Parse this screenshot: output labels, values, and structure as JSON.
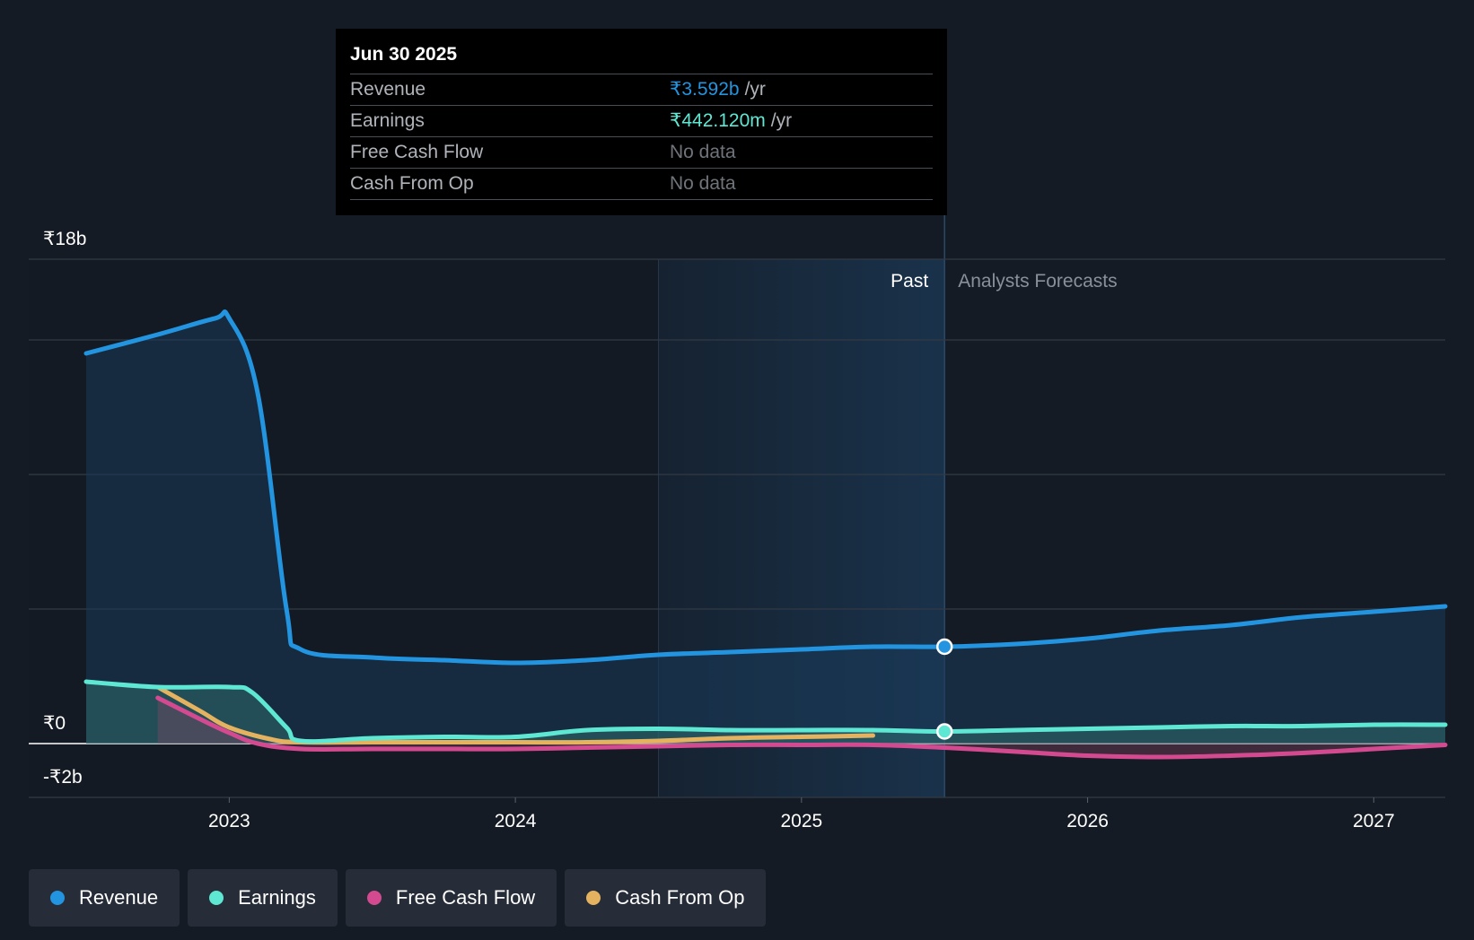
{
  "colors": {
    "revenue": "#2394df",
    "earnings": "#5ee7d3",
    "free_cash_flow": "#d44a90",
    "cash_from_op": "#e5b25f",
    "background": "#151b24"
  },
  "tooltip": {
    "date": "Jun 30 2025",
    "rows": [
      {
        "label": "Revenue",
        "value": "₹3.592b",
        "unit": "/yr",
        "color": "#2394df"
      },
      {
        "label": "Earnings",
        "value": "₹442.120m",
        "unit": "/yr",
        "color": "#5ee7d3"
      },
      {
        "label": "Free Cash Flow",
        "value": "No data",
        "unit": "",
        "color": "#6f747b"
      },
      {
        "label": "Cash From Op",
        "value": "No data",
        "unit": "",
        "color": "#6f747b"
      }
    ]
  },
  "chart_data": {
    "type": "line",
    "title": "",
    "xlabel": "",
    "ylabel": "",
    "x_unit": "year",
    "xlim": [
      2022.5,
      2027.25
    ],
    "ylim": [
      -2,
      18
    ],
    "y_tick_labels": [
      {
        "value": 18,
        "label": "₹18b"
      },
      {
        "value": 0,
        "label": "₹0"
      },
      {
        "value": -2,
        "label": "-₹2b"
      }
    ],
    "gridlines": [
      18,
      15,
      10,
      5,
      -2
    ],
    "x_ticks": [
      {
        "value": 2023,
        "label": "2023"
      },
      {
        "value": 2024,
        "label": "2024"
      },
      {
        "value": 2025,
        "label": "2025"
      },
      {
        "value": 2026,
        "label": "2026"
      },
      {
        "value": 2027,
        "label": "2027"
      }
    ],
    "past_label": "Past",
    "forecast_label": "Analysts Forecasts",
    "past_highlight_range": [
      2024.5,
      2025.5
    ],
    "divider_x": 2025.5,
    "series": [
      {
        "key": "revenue",
        "name": "Revenue",
        "fill": true,
        "points": [
          [
            2022.5,
            14.5
          ],
          [
            2022.75,
            15.2
          ],
          [
            2022.95,
            15.8
          ],
          [
            2023.0,
            15.8
          ],
          [
            2023.1,
            13.0
          ],
          [
            2023.2,
            5.0
          ],
          [
            2023.25,
            3.5
          ],
          [
            2023.5,
            3.2
          ],
          [
            2023.75,
            3.1
          ],
          [
            2024.0,
            3.0
          ],
          [
            2024.25,
            3.1
          ],
          [
            2024.5,
            3.3
          ],
          [
            2024.75,
            3.4
          ],
          [
            2025.0,
            3.5
          ],
          [
            2025.25,
            3.6
          ],
          [
            2025.5,
            3.6
          ],
          [
            2025.75,
            3.7
          ],
          [
            2026.0,
            3.9
          ],
          [
            2026.25,
            4.2
          ],
          [
            2026.5,
            4.4
          ],
          [
            2026.75,
            4.7
          ],
          [
            2027.0,
            4.9
          ],
          [
            2027.25,
            5.1
          ]
        ],
        "marker": [
          2025.5,
          3.6
        ]
      },
      {
        "key": "earnings",
        "name": "Earnings",
        "fill": true,
        "points": [
          [
            2022.5,
            2.3
          ],
          [
            2022.75,
            2.1
          ],
          [
            2023.0,
            2.1
          ],
          [
            2023.08,
            1.9
          ],
          [
            2023.2,
            0.6
          ],
          [
            2023.25,
            0.1
          ],
          [
            2023.5,
            0.2
          ],
          [
            2023.75,
            0.25
          ],
          [
            2024.0,
            0.25
          ],
          [
            2024.25,
            0.5
          ],
          [
            2024.5,
            0.55
          ],
          [
            2024.75,
            0.5
          ],
          [
            2025.0,
            0.5
          ],
          [
            2025.25,
            0.5
          ],
          [
            2025.5,
            0.45
          ],
          [
            2025.75,
            0.5
          ],
          [
            2026.0,
            0.55
          ],
          [
            2026.25,
            0.6
          ],
          [
            2026.5,
            0.65
          ],
          [
            2026.75,
            0.65
          ],
          [
            2027.0,
            0.7
          ],
          [
            2027.25,
            0.7
          ]
        ],
        "marker": [
          2025.5,
          0.45
        ]
      },
      {
        "key": "free_cash_flow",
        "name": "Free Cash Flow",
        "fill": true,
        "points": [
          [
            2022.75,
            1.7
          ],
          [
            2022.9,
            0.9
          ],
          [
            2023.0,
            0.4
          ],
          [
            2023.1,
            0.0
          ],
          [
            2023.25,
            -0.2
          ],
          [
            2023.5,
            -0.2
          ],
          [
            2023.75,
            -0.2
          ],
          [
            2024.0,
            -0.2
          ],
          [
            2024.25,
            -0.15
          ],
          [
            2024.5,
            -0.1
          ],
          [
            2024.75,
            -0.05
          ],
          [
            2025.0,
            -0.05
          ],
          [
            2025.25,
            -0.05
          ],
          [
            2025.5,
            -0.15
          ],
          [
            2025.75,
            -0.3
          ],
          [
            2026.0,
            -0.45
          ],
          [
            2026.25,
            -0.5
          ],
          [
            2026.5,
            -0.45
          ],
          [
            2026.75,
            -0.35
          ],
          [
            2027.0,
            -0.2
          ],
          [
            2027.25,
            -0.05
          ]
        ]
      },
      {
        "key": "cash_from_op",
        "name": "Cash From Op",
        "fill": false,
        "points": [
          [
            2022.75,
            2.1
          ],
          [
            2022.9,
            1.2
          ],
          [
            2023.0,
            0.6
          ],
          [
            2023.15,
            0.15
          ],
          [
            2023.25,
            0.05
          ],
          [
            2023.5,
            0.05
          ],
          [
            2023.75,
            0.05
          ],
          [
            2024.0,
            0.05
          ],
          [
            2024.25,
            0.05
          ],
          [
            2024.5,
            0.1
          ],
          [
            2024.75,
            0.2
          ],
          [
            2025.0,
            0.25
          ],
          [
            2025.25,
            0.3
          ]
        ]
      }
    ]
  },
  "legend": [
    {
      "label": "Revenue",
      "color": "#2394df"
    },
    {
      "label": "Earnings",
      "color": "#5ee7d3"
    },
    {
      "label": "Free Cash Flow",
      "color": "#d44a90"
    },
    {
      "label": "Cash From Op",
      "color": "#e5b25f"
    }
  ]
}
